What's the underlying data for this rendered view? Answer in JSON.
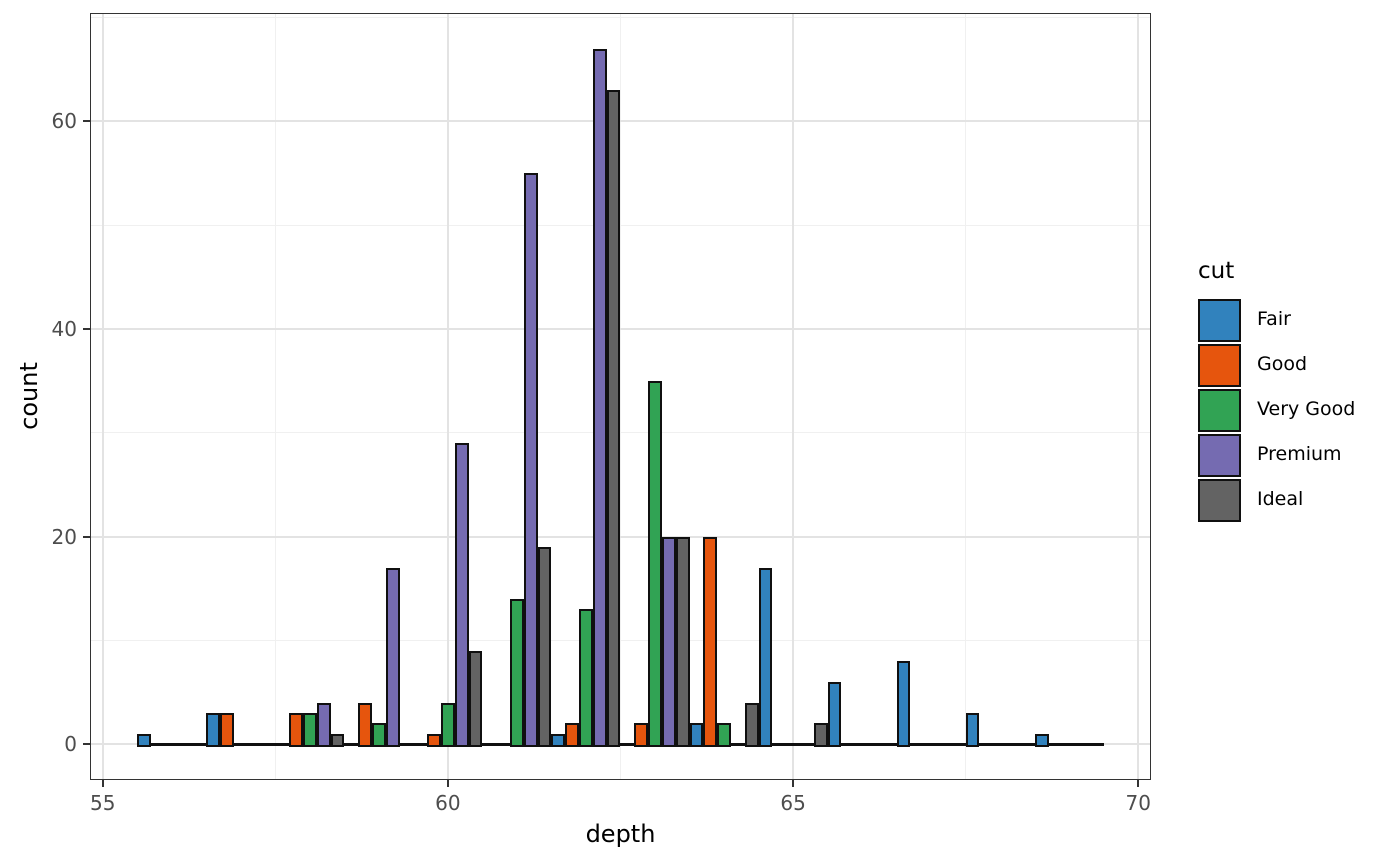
{
  "chart_data": {
    "type": "bar",
    "variant": "dodged-histogram",
    "title": "",
    "xlabel": "depth",
    "ylabel": "count",
    "legend_title": "cut",
    "legend_position": "right",
    "grid": true,
    "bin_width": 1,
    "bin_centers": [
      56,
      57,
      58,
      59,
      60,
      61,
      62,
      63,
      64,
      65,
      66,
      67,
      68,
      69
    ],
    "series": [
      {
        "name": "Fair",
        "color": "#3182bd",
        "values": [
          1,
          3,
          0,
          0,
          0,
          0,
          1,
          0,
          2,
          17,
          6,
          8,
          3,
          1
        ]
      },
      {
        "name": "Good",
        "color": "#e6550d",
        "values": [
          0,
          3,
          3,
          4,
          1,
          0,
          2,
          2,
          20,
          0,
          0,
          0,
          0,
          0
        ]
      },
      {
        "name": "Very Good",
        "color": "#31a354",
        "values": [
          0,
          0,
          3,
          2,
          4,
          14,
          13,
          35,
          2,
          0,
          0,
          0,
          0,
          0
        ]
      },
      {
        "name": "Premium",
        "color": "#756bb1",
        "values": [
          0,
          0,
          4,
          17,
          29,
          55,
          67,
          20,
          0,
          0,
          0,
          0,
          0,
          0
        ]
      },
      {
        "name": "Ideal",
        "color": "#636363",
        "values": [
          0,
          0,
          1,
          0,
          9,
          19,
          63,
          20,
          4,
          2,
          0,
          0,
          0,
          0
        ]
      }
    ],
    "x_ticks": [
      55,
      60,
      65,
      70
    ],
    "x_tick_labels": [
      "55",
      "60",
      "65",
      "70"
    ],
    "x_minor_breaks": [
      57.5,
      62.5,
      67.5
    ],
    "y_ticks": [
      0,
      20,
      40,
      60
    ],
    "y_tick_labels": [
      "0",
      "20",
      "40",
      "60"
    ],
    "y_minor_breaks": [
      10,
      30,
      50,
      70
    ],
    "xlim": [
      54.83,
      70.17
    ],
    "ylim": [
      -3.35,
      70.35
    ],
    "bar_border_color": "#101010",
    "gridline_major_color": "#e3e3e3",
    "gridline_minor_color": "#f0f0f0"
  }
}
